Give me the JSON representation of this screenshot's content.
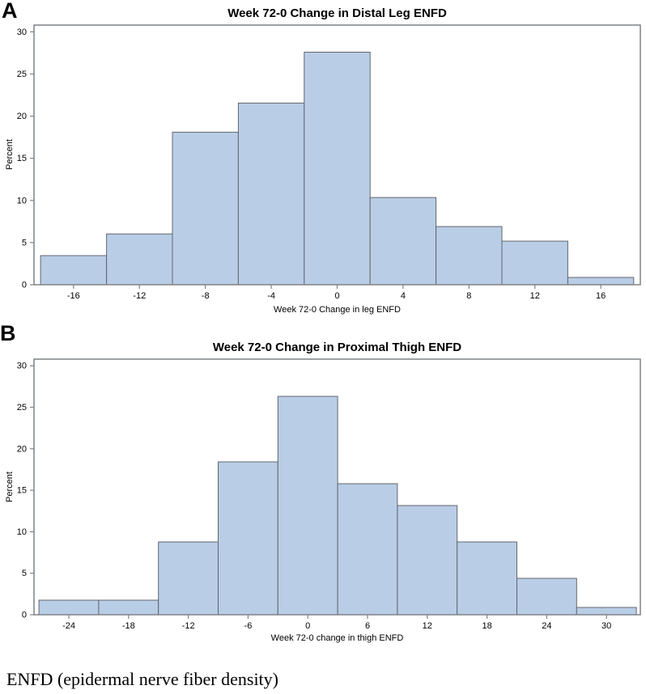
{
  "page": {
    "caption": "ENFD (epidermal nerve fiber density)"
  },
  "colors": {
    "bar_fill": "#b9cde6",
    "bar_stroke": "#63676c",
    "axis_line": "#7f8386",
    "tick_text": "#000000"
  },
  "chart_data": [
    {
      "type": "bar",
      "panel_letter": "A",
      "title": "Week 72-0 Change in Distal Leg ENFD",
      "xlabel": "Week 72-0 Change in leg ENFD",
      "ylabel": "Percent",
      "bin_start": -18,
      "bin_width": 4,
      "values": [
        3.45,
        6.03,
        18.1,
        21.55,
        27.59,
        10.34,
        6.9,
        5.17,
        0.86
      ],
      "xticks": [
        -16,
        -12,
        -8,
        -4,
        0,
        4,
        8,
        12,
        16
      ],
      "yticks": [
        0,
        5,
        10,
        15,
        20,
        25,
        30
      ],
      "xlim": [
        -18.4,
        18.4
      ],
      "ylim": [
        0,
        30.8
      ],
      "grid": false,
      "legend": null
    },
    {
      "type": "bar",
      "panel_letter": "B",
      "title": "Week 72-0 Change in Proximal Thigh ENFD",
      "xlabel": "Week 72-0 change in thigh ENFD",
      "ylabel": "Percent",
      "bin_start": -27,
      "bin_width": 6,
      "values": [
        1.75,
        1.75,
        8.77,
        18.42,
        26.32,
        15.79,
        13.16,
        8.77,
        4.39,
        0.88
      ],
      "xticks": [
        -24,
        -18,
        -12,
        -6,
        0,
        6,
        12,
        18,
        24,
        30
      ],
      "yticks": [
        0,
        5,
        10,
        15,
        20,
        25,
        30
      ],
      "xlim": [
        -27.5,
        33.4
      ],
      "ylim": [
        0,
        30.8
      ],
      "grid": false,
      "legend": null
    }
  ]
}
